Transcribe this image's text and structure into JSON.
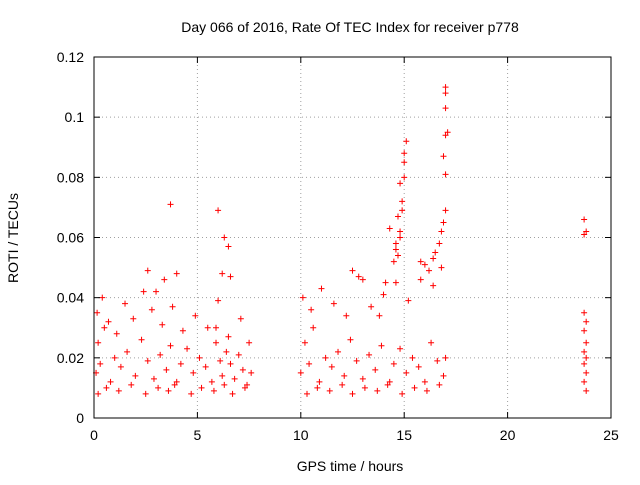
{
  "colors": {
    "background": "#ffffff",
    "axis": "#000000",
    "grid": "#a0a0a0",
    "marker": "#ff0000"
  },
  "chart_data": {
    "type": "scatter",
    "title": "Day 066 of 2016, Rate Of TEC Index for receiver p778",
    "xlabel": "GPS time / hours",
    "ylabel": "ROTI / TECUs",
    "xlim": [
      0,
      25
    ],
    "ylim": [
      0,
      0.12
    ],
    "xticks": [
      0,
      5,
      10,
      15,
      20,
      25
    ],
    "yticks": [
      0,
      0.02,
      0.04,
      0.06,
      0.08,
      0.1,
      0.12
    ],
    "xtick_labels": [
      "0",
      "5",
      "10",
      "15",
      "20",
      "25"
    ],
    "ytick_labels": [
      "0",
      "0.02",
      "0.04",
      "0.06",
      "0.08",
      "0.1",
      "0.12"
    ],
    "grid": true,
    "marker": "+",
    "series": [
      {
        "name": "ROTI",
        "x": [
          0.1,
          0.2,
          0.3,
          0.5,
          0.8,
          1.0,
          1.3,
          1.6,
          2.0,
          2.3,
          2.6,
          2.9,
          3.2,
          3.5,
          3.7,
          3.9,
          4.2,
          4.5,
          4.8,
          5.1,
          5.4,
          5.7,
          5.9,
          6.1,
          6.2,
          6.4,
          6.6,
          6.8,
          7.0,
          7.2,
          7.4,
          7.6,
          0.15,
          0.4,
          0.7,
          1.1,
          1.5,
          1.9,
          2.4,
          2.8,
          3.3,
          3.8,
          4.3,
          4.9,
          5.5,
          6.0,
          6.5,
          7.1,
          7.5,
          0.2,
          0.6,
          1.2,
          1.8,
          2.5,
          3.1,
          3.6,
          4.0,
          4.7,
          5.2,
          5.8,
          6.3,
          6.7,
          7.3,
          2.6,
          3.0,
          3.4,
          3.7,
          4.0,
          6.0,
          6.2,
          6.3,
          6.5,
          6.6,
          5.9,
          10.0,
          10.2,
          10.4,
          10.6,
          10.9,
          11.2,
          11.5,
          11.8,
          12.1,
          12.4,
          12.7,
          13.0,
          13.3,
          13.6,
          13.9,
          14.2,
          14.5,
          14.8,
          15.1,
          15.4,
          15.7,
          16.0,
          16.3,
          16.6,
          16.9,
          17.0,
          10.1,
          10.5,
          11.0,
          11.6,
          12.2,
          12.8,
          13.4,
          14.0,
          14.6,
          15.2,
          15.8,
          16.4,
          16.8,
          10.3,
          10.8,
          11.4,
          12.0,
          12.5,
          13.1,
          13.7,
          14.3,
          14.9,
          15.5,
          16.1,
          16.7,
          12.5,
          13.0,
          13.8,
          14.1,
          14.3,
          14.5,
          14.6,
          14.7,
          14.8,
          14.9,
          15.0,
          15.1,
          14.7,
          14.8,
          14.9,
          15.0,
          14.6,
          14.8,
          15.0,
          15.8,
          16.0,
          16.2,
          16.4,
          16.5,
          16.7,
          16.8,
          16.9,
          17.0,
          17.0,
          16.9,
          17.0,
          17.0,
          17.0,
          17.0,
          17.1,
          23.7,
          23.7,
          23.8,
          23.7,
          23.8,
          23.7,
          23.8,
          23.7,
          23.8,
          23.7,
          23.8,
          23.7,
          23.8
        ],
        "y": [
          0.015,
          0.025,
          0.018,
          0.03,
          0.012,
          0.02,
          0.017,
          0.022,
          0.014,
          0.026,
          0.019,
          0.013,
          0.021,
          0.016,
          0.024,
          0.011,
          0.018,
          0.023,
          0.015,
          0.02,
          0.017,
          0.012,
          0.025,
          0.019,
          0.014,
          0.022,
          0.018,
          0.013,
          0.021,
          0.016,
          0.011,
          0.015,
          0.035,
          0.04,
          0.032,
          0.028,
          0.038,
          0.033,
          0.042,
          0.036,
          0.031,
          0.037,
          0.029,
          0.034,
          0.03,
          0.039,
          0.027,
          0.033,
          0.025,
          0.008,
          0.01,
          0.009,
          0.011,
          0.008,
          0.01,
          0.009,
          0.012,
          0.008,
          0.01,
          0.009,
          0.011,
          0.008,
          0.01,
          0.049,
          0.042,
          0.046,
          0.071,
          0.048,
          0.069,
          0.048,
          0.06,
          0.057,
          0.047,
          0.03,
          0.015,
          0.025,
          0.018,
          0.03,
          0.012,
          0.02,
          0.017,
          0.022,
          0.014,
          0.026,
          0.019,
          0.013,
          0.021,
          0.016,
          0.024,
          0.011,
          0.018,
          0.023,
          0.015,
          0.02,
          0.017,
          0.012,
          0.025,
          0.019,
          0.014,
          0.02,
          0.04,
          0.036,
          0.043,
          0.038,
          0.034,
          0.047,
          0.037,
          0.041,
          0.045,
          0.039,
          0.052,
          0.044,
          0.05,
          0.008,
          0.01,
          0.009,
          0.011,
          0.008,
          0.01,
          0.009,
          0.012,
          0.008,
          0.01,
          0.009,
          0.011,
          0.049,
          0.046,
          0.034,
          0.045,
          0.063,
          0.052,
          0.058,
          0.067,
          0.078,
          0.072,
          0.085,
          0.092,
          0.054,
          0.062,
          0.069,
          0.08,
          0.056,
          0.06,
          0.088,
          0.046,
          0.051,
          0.049,
          0.053,
          0.055,
          0.058,
          0.062,
          0.065,
          0.069,
          0.081,
          0.087,
          0.094,
          0.103,
          0.108,
          0.11,
          0.095,
          0.066,
          0.061,
          0.062,
          0.035,
          0.032,
          0.029,
          0.025,
          0.022,
          0.02,
          0.018,
          0.015,
          0.012,
          0.009
        ]
      }
    ]
  }
}
